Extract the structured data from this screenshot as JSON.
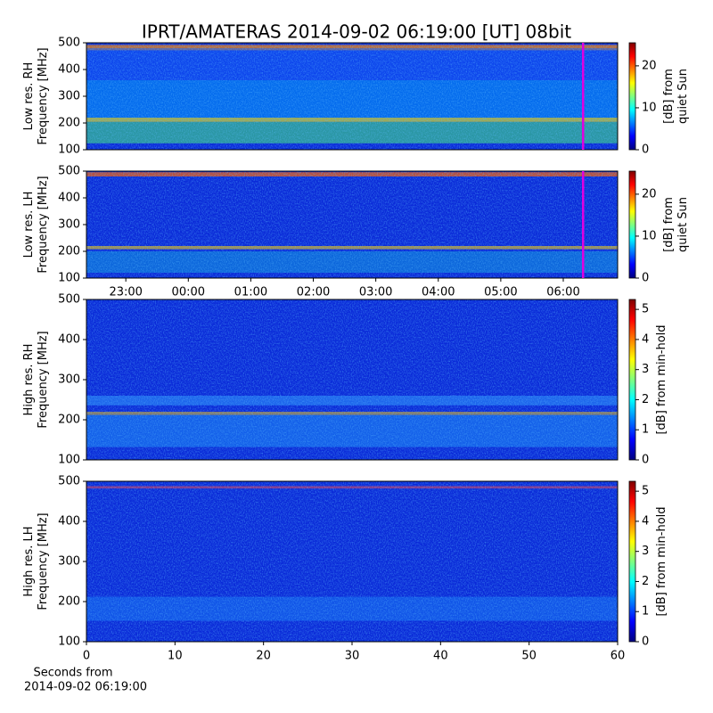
{
  "title": "IPRT/AMATERAS 2014-09-02 06:19:00 [UT]   08bit",
  "chart_data": [
    {
      "type": "heatmap",
      "ylabel": [
        "Low res. RH",
        "Frequency [MHz]"
      ],
      "ylim": [
        100,
        500
      ],
      "yticks": [
        100,
        200,
        300,
        400,
        500
      ],
      "xlim": [
        -1.63,
        6.87
      ],
      "cursor_x": 6.317,
      "cursor_color": "#e000e0",
      "colorbar_label": [
        "[dB] from",
        "quiet Sun"
      ],
      "clim": [
        0,
        25.5
      ],
      "cticks": [
        0,
        10,
        20
      ]
    },
    {
      "type": "heatmap",
      "ylabel": [
        "Low res. LH",
        "Frequency [MHz]"
      ],
      "ylim": [
        100,
        500
      ],
      "yticks": [
        100,
        200,
        300,
        400,
        500
      ],
      "xlim": [
        -1.63,
        6.87
      ],
      "cursor_x": 6.317,
      "cursor_color": "#e000e0",
      "xticks": [
        {
          "value": -1,
          "label": "23:00"
        },
        {
          "value": 0,
          "label": "00:00"
        },
        {
          "value": 1,
          "label": "01:00"
        },
        {
          "value": 2,
          "label": "02:00"
        },
        {
          "value": 3,
          "label": "03:00"
        },
        {
          "value": 4,
          "label": "04:00"
        },
        {
          "value": 5,
          "label": "05:00"
        },
        {
          "value": 6,
          "label": "06:00"
        }
      ],
      "colorbar_label": [
        "[dB] from",
        "quiet Sun"
      ],
      "clim": [
        0,
        25.5
      ],
      "cticks": [
        0,
        10,
        20
      ]
    },
    {
      "type": "heatmap",
      "ylabel": [
        "High res. RH",
        "Frequency [MHz]"
      ],
      "ylim": [
        100,
        500
      ],
      "yticks": [
        100,
        200,
        300,
        400,
        500
      ],
      "xlim": [
        0,
        60
      ],
      "colorbar_label": [
        "[dB] from min-hold"
      ],
      "clim": [
        0,
        5.33
      ],
      "cticks": [
        0,
        1,
        2,
        3,
        4,
        5
      ]
    },
    {
      "type": "heatmap",
      "ylabel": [
        "High res. LH",
        "Frequency [MHz]"
      ],
      "ylim": [
        100,
        500
      ],
      "yticks": [
        100,
        200,
        300,
        400,
        500
      ],
      "xlim": [
        0,
        60
      ],
      "xticks": [
        0,
        10,
        20,
        30,
        40,
        50,
        60
      ],
      "xlabel": [
        "Seconds from",
        "2014-09-02 06:19:00"
      ],
      "colorbar_label": [
        "[dB] from min-hold"
      ],
      "clim": [
        0,
        5.33
      ],
      "cticks": [
        0,
        1,
        2,
        3,
        4,
        5
      ]
    }
  ]
}
